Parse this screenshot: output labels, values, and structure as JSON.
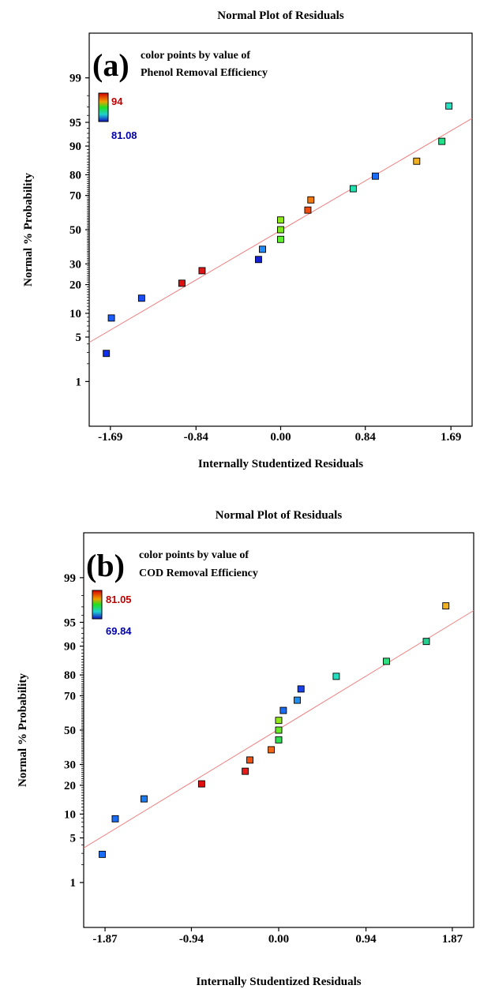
{
  "chart_data": [
    {
      "type": "scatter",
      "panel": "(a)",
      "title": "Normal Plot of Residuals",
      "xlabel": "Internally Studentized Residuals",
      "ylabel": "Normal % Probability",
      "xticks": [
        "-1.69",
        "-0.84",
        "0.00",
        "0.84",
        "1.69"
      ],
      "yticks": [
        "1",
        "5",
        "10",
        "20",
        "30",
        "50",
        "70",
        "80",
        "90",
        "95",
        "99"
      ],
      "xlim": [
        -1.9,
        1.9
      ],
      "ylim_percent": [
        0.13,
        99.87
      ],
      "color_note_line1": "color points by value of",
      "color_note_line2": "Phenol Removal Efficiency",
      "colorbar": {
        "max_label": "94",
        "min_label": "81.08",
        "max_color": "#c00000",
        "min_color": "#0000aa"
      },
      "reference_line": {
        "x": [
          -1.9,
          1.9
        ],
        "y": [
          4.2,
          95.6
        ],
        "color": "#f08080"
      },
      "points": [
        {
          "x": -1.73,
          "y": 2.9,
          "color": "#0e2ef0"
        },
        {
          "x": -1.68,
          "y": 8.8,
          "color": "#1a5cff"
        },
        {
          "x": -1.38,
          "y": 14.7,
          "color": "#1a4cf5"
        },
        {
          "x": -0.98,
          "y": 20.6,
          "color": "#e01010"
        },
        {
          "x": -0.78,
          "y": 26.5,
          "color": "#dd1515"
        },
        {
          "x": -0.22,
          "y": 32.4,
          "color": "#1520d0"
        },
        {
          "x": -0.18,
          "y": 38.2,
          "color": "#1e8bff"
        },
        {
          "x": 0.0,
          "y": 44.1,
          "color": "#5ef02e"
        },
        {
          "x": 0.0,
          "y": 50.0,
          "color": "#7fe81a"
        },
        {
          "x": 0.0,
          "y": 55.9,
          "color": "#90e81a"
        },
        {
          "x": 0.27,
          "y": 61.8,
          "color": "#f04c10"
        },
        {
          "x": 0.3,
          "y": 67.6,
          "color": "#f07a10"
        },
        {
          "x": 0.72,
          "y": 73.5,
          "color": "#22e0b0"
        },
        {
          "x": 0.94,
          "y": 79.4,
          "color": "#1a6cf5"
        },
        {
          "x": 1.35,
          "y": 85.3,
          "color": "#f0b020"
        },
        {
          "x": 1.6,
          "y": 91.2,
          "color": "#22e08a"
        },
        {
          "x": 1.67,
          "y": 97.1,
          "color": "#22e0c0"
        }
      ]
    },
    {
      "type": "scatter",
      "panel": "(b)",
      "title": "Normal Plot of Residuals",
      "xlabel": "Internally Studentized Residuals",
      "ylabel": "Normal % Probability",
      "xticks": [
        "-1.87",
        "-0.94",
        "0.00",
        "0.94",
        "1.87"
      ],
      "yticks": [
        "1",
        "5",
        "10",
        "20",
        "30",
        "50",
        "70",
        "80",
        "90",
        "95",
        "99"
      ],
      "xlim": [
        -2.1,
        2.1
      ],
      "ylim_percent": [
        0.13,
        99.87
      ],
      "color_note_line1": "color points by value of",
      "color_note_line2": "COD Removal Efficiency",
      "colorbar": {
        "max_label": "81.05",
        "min_label": "69.84",
        "max_color": "#c00000",
        "min_color": "#0000aa"
      },
      "reference_line": {
        "x": [
          -2.1,
          2.1
        ],
        "y": [
          3.6,
          96.6
        ],
        "color": "#f08080"
      },
      "points": [
        {
          "x": -1.9,
          "y": 2.9,
          "color": "#1a6cf5"
        },
        {
          "x": -1.76,
          "y": 8.8,
          "color": "#1a6cf5"
        },
        {
          "x": -1.45,
          "y": 14.7,
          "color": "#1a7cf5"
        },
        {
          "x": -0.83,
          "y": 20.6,
          "color": "#e01010"
        },
        {
          "x": -0.36,
          "y": 26.5,
          "color": "#e81a1a"
        },
        {
          "x": -0.31,
          "y": 32.4,
          "color": "#f05010"
        },
        {
          "x": -0.08,
          "y": 38.2,
          "color": "#f06818"
        },
        {
          "x": 0.0,
          "y": 44.1,
          "color": "#30e050"
        },
        {
          "x": 0.0,
          "y": 50.0,
          "color": "#6ae82a"
        },
        {
          "x": 0.0,
          "y": 55.9,
          "color": "#90e81a"
        },
        {
          "x": 0.05,
          "y": 61.8,
          "color": "#1a6cf5"
        },
        {
          "x": 0.2,
          "y": 67.6,
          "color": "#2090f0"
        },
        {
          "x": 0.24,
          "y": 73.5,
          "color": "#1a40e8"
        },
        {
          "x": 0.62,
          "y": 79.4,
          "color": "#22e0c0"
        },
        {
          "x": 1.16,
          "y": 85.3,
          "color": "#30e080"
        },
        {
          "x": 1.59,
          "y": 91.2,
          "color": "#22d090"
        },
        {
          "x": 1.8,
          "y": 97.1,
          "color": "#f0b020"
        }
      ]
    }
  ]
}
